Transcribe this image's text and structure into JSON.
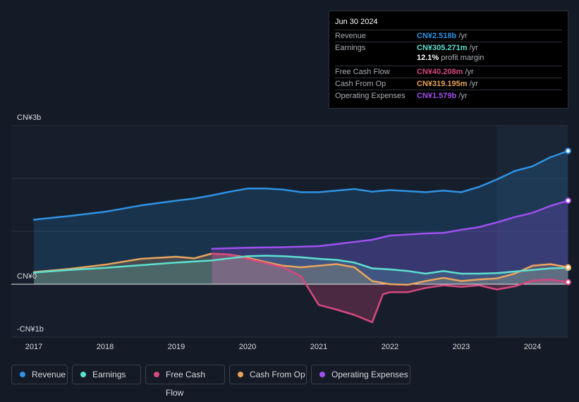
{
  "tooltip": {
    "date": "Jun 30 2024",
    "rows": [
      {
        "label": "Revenue",
        "value": "CN¥2.518b",
        "unit": "/yr",
        "color": "#2e93e6"
      },
      {
        "label": "Earnings",
        "value": "CN¥305.271m",
        "unit": "/yr",
        "color": "#5ce1d0"
      },
      {
        "label": "Free Cash Flow",
        "value": "CN¥40.208m",
        "unit": "/yr",
        "color": "#d6487e"
      },
      {
        "label": "Cash From Op",
        "value": "CN¥319.195m",
        "unit": "/yr",
        "color": "#e9a55c"
      },
      {
        "label": "Operating Expenses",
        "value": "CN¥1.579b",
        "unit": "/yr",
        "color": "#a04ff0"
      }
    ],
    "profit_margin_value": "12.1%",
    "profit_margin_label": "profit margin"
  },
  "legend": [
    {
      "label": "Revenue",
      "color": "#2e93e6"
    },
    {
      "label": "Earnings",
      "color": "#5ce1d0"
    },
    {
      "label": "Free Cash Flow",
      "color": "#d6487e"
    },
    {
      "label": "Cash From Op",
      "color": "#e9a55c"
    },
    {
      "label": "Operating Expenses",
      "color": "#a04ff0"
    }
  ],
  "chart_data": {
    "type": "line",
    "title": "",
    "xlabel": "",
    "ylabel": "",
    "units": "CN¥ billions",
    "ylim": [
      -1,
      3
    ],
    "xlim": [
      2016.7,
      2024.5
    ],
    "y_tick_labels": [
      {
        "value": 3,
        "label": "CN¥3b"
      },
      {
        "value": 0,
        "label": "CN¥0"
      },
      {
        "value": -1,
        "label": "-CN¥1b"
      }
    ],
    "x_ticks": [
      2017,
      2018,
      2019,
      2020,
      2021,
      2022,
      2023,
      2024
    ],
    "x_tick_labels": [
      "2017",
      "2018",
      "2019",
      "2020",
      "2021",
      "2022",
      "2023",
      "2024"
    ],
    "highlight_start": 2023.5,
    "series": [
      {
        "name": "Revenue",
        "color": "#2e93e6",
        "x": [
          2017.0,
          2017.5,
          2018.0,
          2018.5,
          2019.0,
          2019.25,
          2019.5,
          2019.75,
          2020.0,
          2020.25,
          2020.5,
          2020.75,
          2021.0,
          2021.25,
          2021.5,
          2021.75,
          2022.0,
          2022.25,
          2022.5,
          2022.75,
          2023.0,
          2023.25,
          2023.5,
          2023.75,
          2024.0,
          2024.25,
          2024.5
        ],
        "values": [
          1.22,
          1.29,
          1.37,
          1.49,
          1.58,
          1.62,
          1.68,
          1.75,
          1.81,
          1.81,
          1.79,
          1.74,
          1.74,
          1.77,
          1.8,
          1.75,
          1.78,
          1.76,
          1.74,
          1.77,
          1.74,
          1.84,
          1.98,
          2.14,
          2.23,
          2.4,
          2.52
        ]
      },
      {
        "name": "Earnings",
        "color": "#5ce1d0",
        "x": [
          2017.0,
          2017.5,
          2018.0,
          2018.5,
          2019.0,
          2019.5,
          2020.0,
          2020.25,
          2020.5,
          2020.75,
          2021.0,
          2021.25,
          2021.5,
          2021.75,
          2022.0,
          2022.25,
          2022.5,
          2022.75,
          2023.0,
          2023.25,
          2023.5,
          2023.75,
          2024.0,
          2024.25,
          2024.5
        ],
        "values": [
          0.22,
          0.27,
          0.31,
          0.36,
          0.41,
          0.45,
          0.53,
          0.54,
          0.53,
          0.51,
          0.48,
          0.46,
          0.41,
          0.3,
          0.28,
          0.25,
          0.2,
          0.25,
          0.2,
          0.2,
          0.21,
          0.24,
          0.27,
          0.3,
          0.31
        ]
      },
      {
        "name": "Free Cash Flow",
        "color": "#d6487e",
        "x": [
          2019.5,
          2019.75,
          2020.0,
          2020.25,
          2020.5,
          2020.75,
          2021.0,
          2021.25,
          2021.5,
          2021.75,
          2021.9,
          2022.0,
          2022.25,
          2022.5,
          2022.75,
          2023.0,
          2023.25,
          2023.5,
          2023.75,
          2024.0,
          2024.25,
          2024.5
        ],
        "values": [
          0.58,
          0.56,
          0.48,
          0.4,
          0.32,
          0.15,
          -0.39,
          -0.48,
          -0.58,
          -0.72,
          -0.19,
          -0.15,
          -0.15,
          -0.07,
          -0.02,
          -0.05,
          -0.02,
          -0.1,
          -0.04,
          0.07,
          0.09,
          0.04
        ]
      },
      {
        "name": "Cash From Op",
        "color": "#e9a55c",
        "x": [
          2017.0,
          2017.5,
          2018.0,
          2018.5,
          2019.0,
          2019.25,
          2019.5,
          2019.75,
          2020.0,
          2020.25,
          2020.5,
          2020.75,
          2021.0,
          2021.25,
          2021.5,
          2021.75,
          2022.0,
          2022.25,
          2022.5,
          2022.75,
          2023.0,
          2023.25,
          2023.5,
          2023.75,
          2024.0,
          2024.25,
          2024.5
        ],
        "values": [
          0.23,
          0.29,
          0.37,
          0.48,
          0.52,
          0.49,
          0.58,
          0.56,
          0.5,
          0.42,
          0.35,
          0.32,
          0.35,
          0.38,
          0.32,
          0.06,
          0.0,
          -0.01,
          0.06,
          0.12,
          0.06,
          0.09,
          0.11,
          0.2,
          0.35,
          0.38,
          0.32
        ]
      },
      {
        "name": "Operating Expenses",
        "color": "#a04ff0",
        "x": [
          2019.5,
          2020.0,
          2020.5,
          2021.0,
          2021.25,
          2021.5,
          2021.75,
          2022.0,
          2022.25,
          2022.5,
          2022.75,
          2023.0,
          2023.25,
          2023.5,
          2023.75,
          2024.0,
          2024.25,
          2024.5
        ],
        "values": [
          0.67,
          0.69,
          0.7,
          0.72,
          0.76,
          0.8,
          0.84,
          0.92,
          0.94,
          0.96,
          0.97,
          1.03,
          1.08,
          1.17,
          1.27,
          1.35,
          1.48,
          1.58
        ]
      }
    ]
  }
}
